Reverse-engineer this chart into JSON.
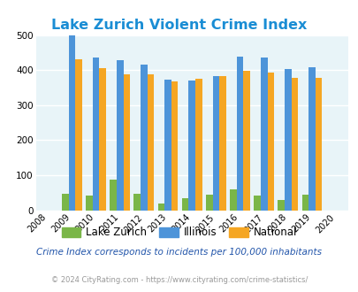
{
  "title": "Lake Zurich Violent Crime Index",
  "subtitle": "Crime Index corresponds to incidents per 100,000 inhabitants",
  "copyright": "© 2024 CityRating.com - https://www.cityrating.com/crime-statistics/",
  "years": [
    2009,
    2010,
    2011,
    2012,
    2013,
    2014,
    2015,
    2016,
    2017,
    2018,
    2019
  ],
  "lake_zurich": [
    48,
    43,
    88,
    47,
    20,
    34,
    44,
    59,
    41,
    30,
    45
  ],
  "illinois": [
    498,
    435,
    429,
    415,
    372,
    370,
    383,
    438,
    437,
    404,
    408
  ],
  "national": [
    430,
    405,
    387,
    387,
    368,
    375,
    383,
    397,
    394,
    379,
    379
  ],
  "color_lz": "#7ab648",
  "color_il": "#4d94d9",
  "color_nat": "#f5a623",
  "bg_color": "#e8f4f8",
  "title_color": "#1a8dd4",
  "ylim": [
    0,
    500
  ],
  "yticks": [
    0,
    100,
    200,
    300,
    400,
    500
  ],
  "xlim": [
    2007.5,
    2020.5
  ],
  "xticks": [
    2008,
    2009,
    2010,
    2011,
    2012,
    2013,
    2014,
    2015,
    2016,
    2017,
    2018,
    2019,
    2020
  ],
  "bar_width": 0.28,
  "legend_labels": [
    "Lake Zurich",
    "Illinois",
    "National"
  ],
  "grid_color": "#ffffff",
  "subtitle_color": "#2255aa",
  "copyright_color": "#999999"
}
